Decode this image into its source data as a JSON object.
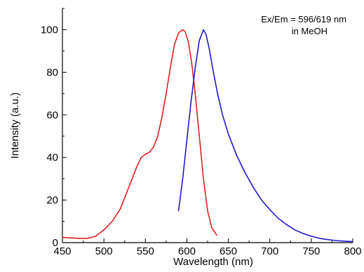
{
  "chart_data": {
    "type": "line",
    "xlabel": "Wavelength (nm)",
    "ylabel": "Intensity (a.u.)",
    "xlim": [
      450,
      800
    ],
    "ylim": [
      0,
      110
    ],
    "xticks": [
      450,
      500,
      550,
      600,
      650,
      700,
      750,
      800
    ],
    "yticks": [
      0,
      20,
      40,
      60,
      80,
      100
    ],
    "grid": false,
    "annotations": [
      "Ex/Em = 596/619 nm",
      "in MeOH"
    ],
    "series": [
      {
        "color": "#e02020",
        "x": [
          450,
          470,
          480,
          490,
          500,
          510,
          520,
          530,
          540,
          545,
          550,
          555,
          560,
          565,
          570,
          575,
          580,
          585,
          590,
          595,
          598,
          602,
          606,
          610,
          615,
          620,
          625,
          630,
          636
        ],
        "y": [
          2.5,
          2.0,
          2.0,
          3.0,
          6.0,
          10.0,
          16.0,
          26.0,
          36.0,
          40.0,
          41.5,
          42.5,
          45.0,
          50.0,
          59.0,
          70.0,
          82.0,
          93.0,
          98.5,
          100.0,
          99.0,
          94.0,
          84.0,
          70.0,
          50.0,
          30.0,
          15.0,
          7.0,
          3.5
        ]
      },
      {
        "color": "#1a1ad0",
        "x": [
          590,
          595,
          600,
          605,
          610,
          615,
          620,
          623,
          627,
          632,
          637,
          643,
          650,
          660,
          670,
          680,
          690,
          700,
          710,
          720,
          730,
          740,
          750,
          760,
          770,
          780,
          790,
          800
        ],
        "y": [
          15.0,
          30.0,
          48.0,
          66.0,
          82.0,
          95.0,
          100.0,
          98.0,
          91.0,
          80.0,
          70.0,
          60.0,
          51.0,
          41.0,
          33.0,
          26.0,
          20.0,
          15.5,
          11.5,
          8.5,
          6.0,
          4.3,
          3.0,
          2.0,
          1.4,
          1.0,
          0.7,
          0.5
        ]
      }
    ]
  }
}
